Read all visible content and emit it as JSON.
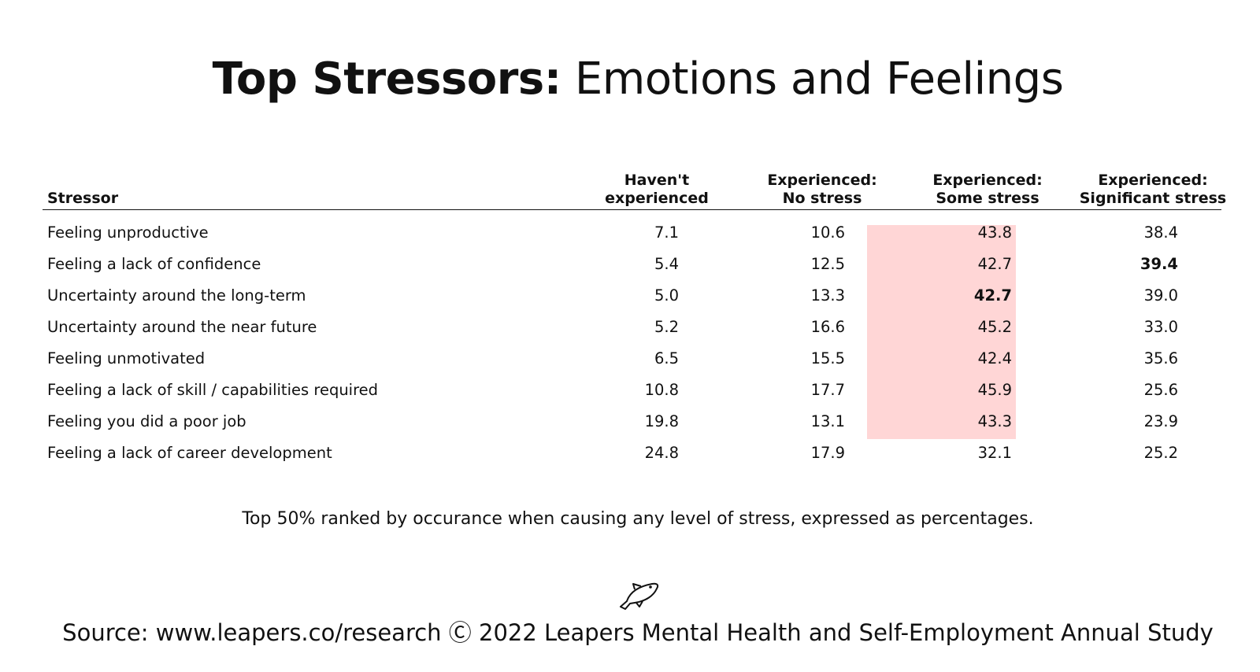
{
  "title": {
    "bold": "Top Stressors:",
    "rest": " Emotions and Feelings"
  },
  "table": {
    "headers": {
      "stressor": "Stressor",
      "col0": [
        "Haven't",
        "experienced"
      ],
      "col1": [
        "Experienced:",
        "No stress"
      ],
      "col2": [
        "Experienced:",
        "Some stress"
      ],
      "col3": [
        "Experienced:",
        "Significant stress"
      ]
    },
    "highlight_color": "#ffd6d6",
    "highlighted_column": "Experienced: Some stress",
    "highlighted_rows": 7
  },
  "chart_data": {
    "type": "table",
    "title": "Top Stressors: Emotions and Feelings",
    "columns": [
      "Stressor",
      "Haven't experienced",
      "Experienced: No stress",
      "Experienced: Some stress",
      "Experienced: Significant stress"
    ],
    "rows": [
      {
        "label": "Feeling unproductive",
        "values": [
          "7.1",
          "10.6",
          "43.8",
          "38.4"
        ],
        "bold": []
      },
      {
        "label": "Feeling a lack of confidence",
        "values": [
          "5.4",
          "12.5",
          "42.7",
          "39.4"
        ],
        "bold": [
          3
        ]
      },
      {
        "label": "Uncertainty around the long-term",
        "values": [
          "5.0",
          "13.3",
          "42.7",
          "39.0"
        ],
        "bold": [
          2
        ]
      },
      {
        "label": "Uncertainty around the near future",
        "values": [
          "5.2",
          "16.6",
          "45.2",
          "33.0"
        ],
        "bold": []
      },
      {
        "label": "Feeling unmotivated",
        "values": [
          "6.5",
          "15.5",
          "42.4",
          "35.6"
        ],
        "bold": []
      },
      {
        "label": "Feeling a lack of skill / capabilities required",
        "values": [
          "10.8",
          "17.7",
          "45.9",
          "25.6"
        ],
        "bold": []
      },
      {
        "label": "Feeling you did a poor job",
        "values": [
          "19.8",
          "13.1",
          "43.3",
          "23.9"
        ],
        "bold": []
      },
      {
        "label": "Feeling a lack of career development",
        "values": [
          "24.8",
          "17.9",
          "32.1",
          "25.2"
        ],
        "bold": []
      }
    ]
  },
  "footnote": "Top 50% ranked by occurance when causing any level of stress, expressed as percentages.",
  "logo_icon": "fish-icon",
  "source": "Source: www.leapers.co/research Ⓒ 2022 Leapers Mental Health and Self-Employment Annual Study"
}
